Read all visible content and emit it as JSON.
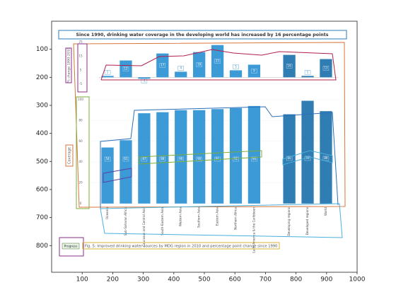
{
  "axes": {
    "xlim": [
      0,
      1000
    ],
    "ylim": [
      895,
      0
    ],
    "xticks": [
      100,
      200,
      300,
      400,
      500,
      600,
      700,
      800,
      900,
      1000
    ],
    "yticks": [
      100,
      200,
      300,
      400,
      500,
      600,
      700,
      800
    ]
  },
  "figure": {
    "title": "Since 1990, drinking water coverage in the developing world has increased by 16 percentage points",
    "caption": "Fig. 5: Improved drinking water sources by MDG region in 2010 and percentage point change since 1990",
    "button": "Progress",
    "top_chart": {
      "type": "bar",
      "axis_label": "% change 1990-2010",
      "ylim": [
        -5,
        25
      ],
      "yticks": [
        25,
        15,
        5,
        -5
      ],
      "values": [
        1,
        12,
        -1,
        17,
        4,
        18,
        23,
        5,
        9,
        16,
        1,
        13
      ]
    },
    "bottom_chart": {
      "type": "bar",
      "axis_label": "Coverage",
      "ylim": [
        0,
        100
      ],
      "yticks": [
        0,
        20,
        40,
        60,
        80,
        100
      ],
      "categories": [
        "Oceania",
        "Sub-Saharan Africa",
        "Caucasus and Central Asia",
        "South-Eastern Asia",
        "Western Asia",
        "Southern Asia",
        "Eastern Asia",
        "Northern Africa",
        "Latin America & the Caribbean",
        "Developing regions",
        "Developed regions",
        "World"
      ],
      "values": [
        54,
        61,
        87,
        88,
        90,
        90,
        91,
        92,
        94,
        86,
        99,
        89
      ]
    }
  }
}
